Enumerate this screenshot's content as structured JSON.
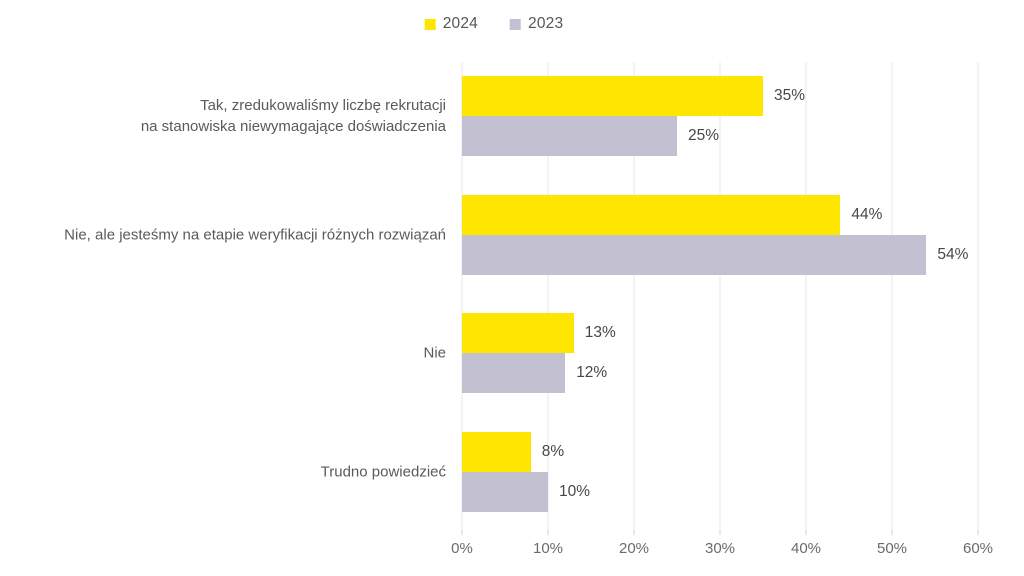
{
  "chart_data": {
    "type": "bar",
    "orientation": "horizontal",
    "title": "",
    "categories": [
      "Tak, zredukowaliśmy liczbę rekrutacji\nna stanowiska niewymagające doświadczenia",
      "Nie, ale jesteśmy na etapie weryfikacji różnych rozwiązań",
      "Nie",
      "Trudno powiedzieć"
    ],
    "series": [
      {
        "name": "2024",
        "color": "#FFE600",
        "values": [
          35,
          44,
          13,
          8
        ],
        "labels": [
          "35%",
          "44%",
          "13%",
          "8%"
        ]
      },
      {
        "name": "2023",
        "color": "#C2C0D1",
        "values": [
          25,
          54,
          12,
          10
        ],
        "labels": [
          "25%",
          "54%",
          "12%",
          "10%"
        ]
      }
    ],
    "xlabel": "",
    "ylabel": "",
    "xlim": [
      0,
      60
    ],
    "x_ticks": [
      "0%",
      "10%",
      "20%",
      "30%",
      "40%",
      "50%",
      "60%"
    ],
    "value_suffix": "%",
    "legend_position": "top-center",
    "grid": "vertical",
    "colors": {
      "grid": "#E9E9E9",
      "tick": "#CFCFCF",
      "category_text": "#5A5A5A",
      "value_text": "#474747",
      "axis_text": "#6B6B6B",
      "background": "#FFFFFF"
    }
  }
}
